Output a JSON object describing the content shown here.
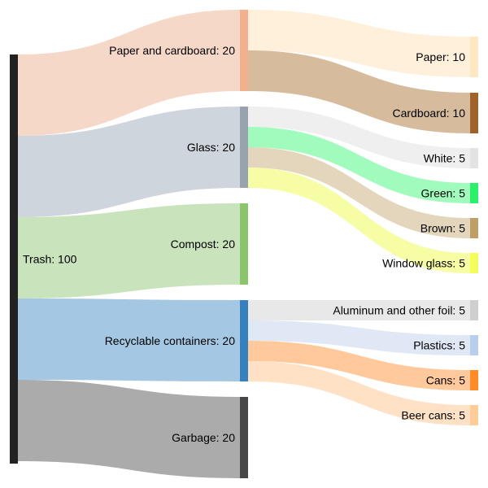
{
  "chart_data": {
    "type": "sankey",
    "title": "",
    "nodes": [
      {
        "id": "trash",
        "label": "Trash: 100",
        "value": 100,
        "color": "#222222"
      },
      {
        "id": "paper_cardboard",
        "label": "Paper and cardboard: 20",
        "value": 20,
        "color": "#f2b08f"
      },
      {
        "id": "glass",
        "label": "Glass: 20",
        "value": 20,
        "color": "#99a3b0"
      },
      {
        "id": "compost",
        "label": "Compost: 20",
        "value": 20,
        "color": "#8ac46b"
      },
      {
        "id": "recyclable",
        "label": "Recyclable containers: 20",
        "value": 20,
        "color": "#3580bd"
      },
      {
        "id": "garbage",
        "label": "Garbage: 20",
        "value": 20,
        "color": "#474747"
      },
      {
        "id": "paper",
        "label": "Paper: 10",
        "value": 10,
        "color": "#ffe7c4"
      },
      {
        "id": "cardboard",
        "label": "Cardboard: 10",
        "value": 10,
        "color": "#a0622b"
      },
      {
        "id": "white",
        "label": "White: 5",
        "value": 5,
        "color": "#e3e3e3"
      },
      {
        "id": "green",
        "label": "Green: 5",
        "value": 5,
        "color": "#2cef6c"
      },
      {
        "id": "brown",
        "label": "Brown: 5",
        "value": 5,
        "color": "#bf9f68"
      },
      {
        "id": "window_glass",
        "label": "Window glass: 5",
        "value": 5,
        "color": "#f4fd5a"
      },
      {
        "id": "aluminum",
        "label": "Aluminum and other foil: 5",
        "value": 5,
        "color": "#cfcfcf"
      },
      {
        "id": "plastics",
        "label": "Plastics: 5",
        "value": 5,
        "color": "#b8cfeb"
      },
      {
        "id": "cans",
        "label": "Cans: 5",
        "value": 5,
        "color": "#ff8c28"
      },
      {
        "id": "beer_cans",
        "label": "Beer cans: 5",
        "value": 5,
        "color": "#ffcc9a"
      }
    ],
    "links": [
      {
        "source": "trash",
        "target": "paper_cardboard",
        "value": 20,
        "color": "#f6d8c8"
      },
      {
        "source": "trash",
        "target": "glass",
        "value": 20,
        "color": "#cfd5dd"
      },
      {
        "source": "trash",
        "target": "compost",
        "value": 20,
        "color": "#c9e3bd"
      },
      {
        "source": "trash",
        "target": "recyclable",
        "value": 20,
        "color": "#a4c8e3"
      },
      {
        "source": "trash",
        "target": "garbage",
        "value": 20,
        "color": "#ababab"
      },
      {
        "source": "paper_cardboard",
        "target": "paper",
        "value": 10,
        "color": "#fff0dc"
      },
      {
        "source": "paper_cardboard",
        "target": "cardboard",
        "value": 10,
        "color": "#d6bb9d"
      },
      {
        "source": "glass",
        "target": "white",
        "value": 5,
        "color": "#efefef"
      },
      {
        "source": "glass",
        "target": "green",
        "value": 5,
        "color": "#a0fbbd"
      },
      {
        "source": "glass",
        "target": "brown",
        "value": 5,
        "color": "#e3d6bd"
      },
      {
        "source": "glass",
        "target": "window_glass",
        "value": 5,
        "color": "#f6fda4"
      },
      {
        "source": "recyclable",
        "target": "aluminum",
        "value": 5,
        "color": "#e8e8e8"
      },
      {
        "source": "recyclable",
        "target": "plastics",
        "value": 5,
        "color": "#dfe8f4"
      },
      {
        "source": "recyclable",
        "target": "cans",
        "value": 5,
        "color": "#ffc99c"
      },
      {
        "source": "recyclable",
        "target": "beer_cans",
        "value": 5,
        "color": "#ffe2c6"
      }
    ]
  }
}
